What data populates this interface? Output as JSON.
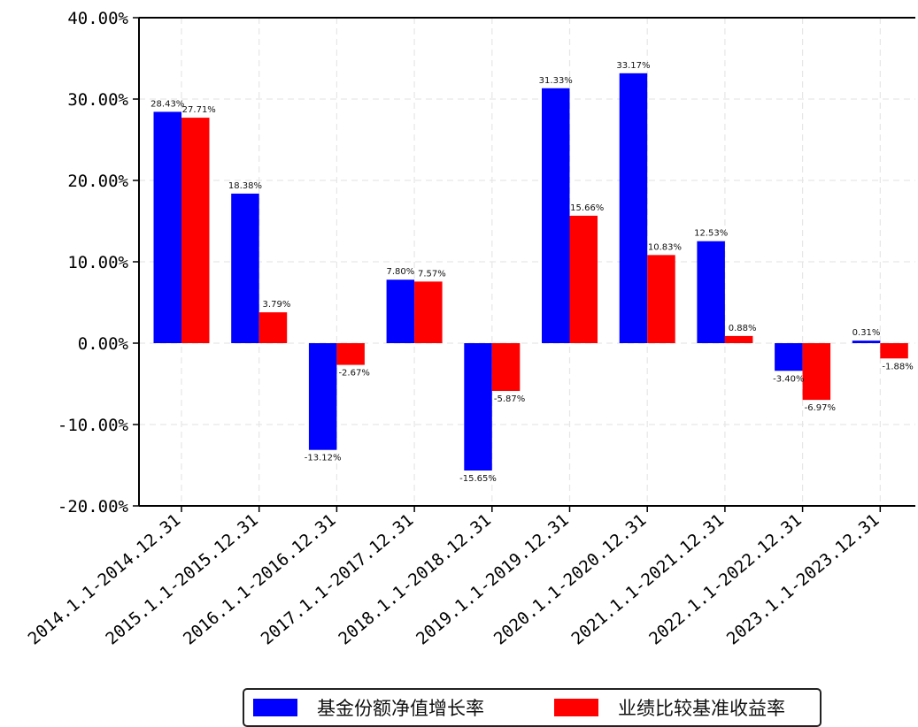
{
  "chart_data": {
    "type": "bar",
    "categories": [
      "2014.1.1-2014.12.31",
      "2015.1.1-2015.12.31",
      "2016.1.1-2016.12.31",
      "2017.1.1-2017.12.31",
      "2018.1.1-2018.12.31",
      "2019.1.1-2019.12.31",
      "2020.1.1-2020.12.31",
      "2021.1.1-2021.12.31",
      "2022.1.1-2022.12.31",
      "2023.1.1-2023.12.31"
    ],
    "series": [
      {
        "name": "基金份额净值增长率",
        "color": "#0000ff",
        "values": [
          28.43,
          18.38,
          -13.12,
          7.8,
          -15.65,
          31.33,
          33.17,
          12.53,
          -3.4,
          0.31
        ],
        "labels": [
          "28.43%",
          "18.38%",
          "-13.12%",
          "7.80%",
          "-15.65%",
          "31.33%",
          "33.17%",
          "12.53%",
          "-3.40%",
          "0.31%"
        ]
      },
      {
        "name": "业绩比较基准收益率",
        "color": "#ff0000",
        "values": [
          27.71,
          3.79,
          -2.67,
          7.57,
          -5.87,
          15.66,
          10.83,
          0.88,
          -6.97,
          -1.88
        ],
        "labels": [
          "27.71%",
          "3.79%",
          "-2.67%",
          "7.57%",
          "-5.87%",
          "15.66%",
          "10.83%",
          "0.88%",
          "-6.97%",
          "-1.88%"
        ]
      }
    ],
    "yticks": [
      -20,
      -10,
      0,
      10,
      20,
      30,
      40
    ],
    "ytick_labels": [
      "-20.00%",
      "-10.00%",
      "0.00%",
      "10.00%",
      "20.00%",
      "30.00%",
      "40.00%"
    ],
    "ylim": [
      -20,
      40
    ],
    "grid": true,
    "legend_position": "bottom-center"
  }
}
